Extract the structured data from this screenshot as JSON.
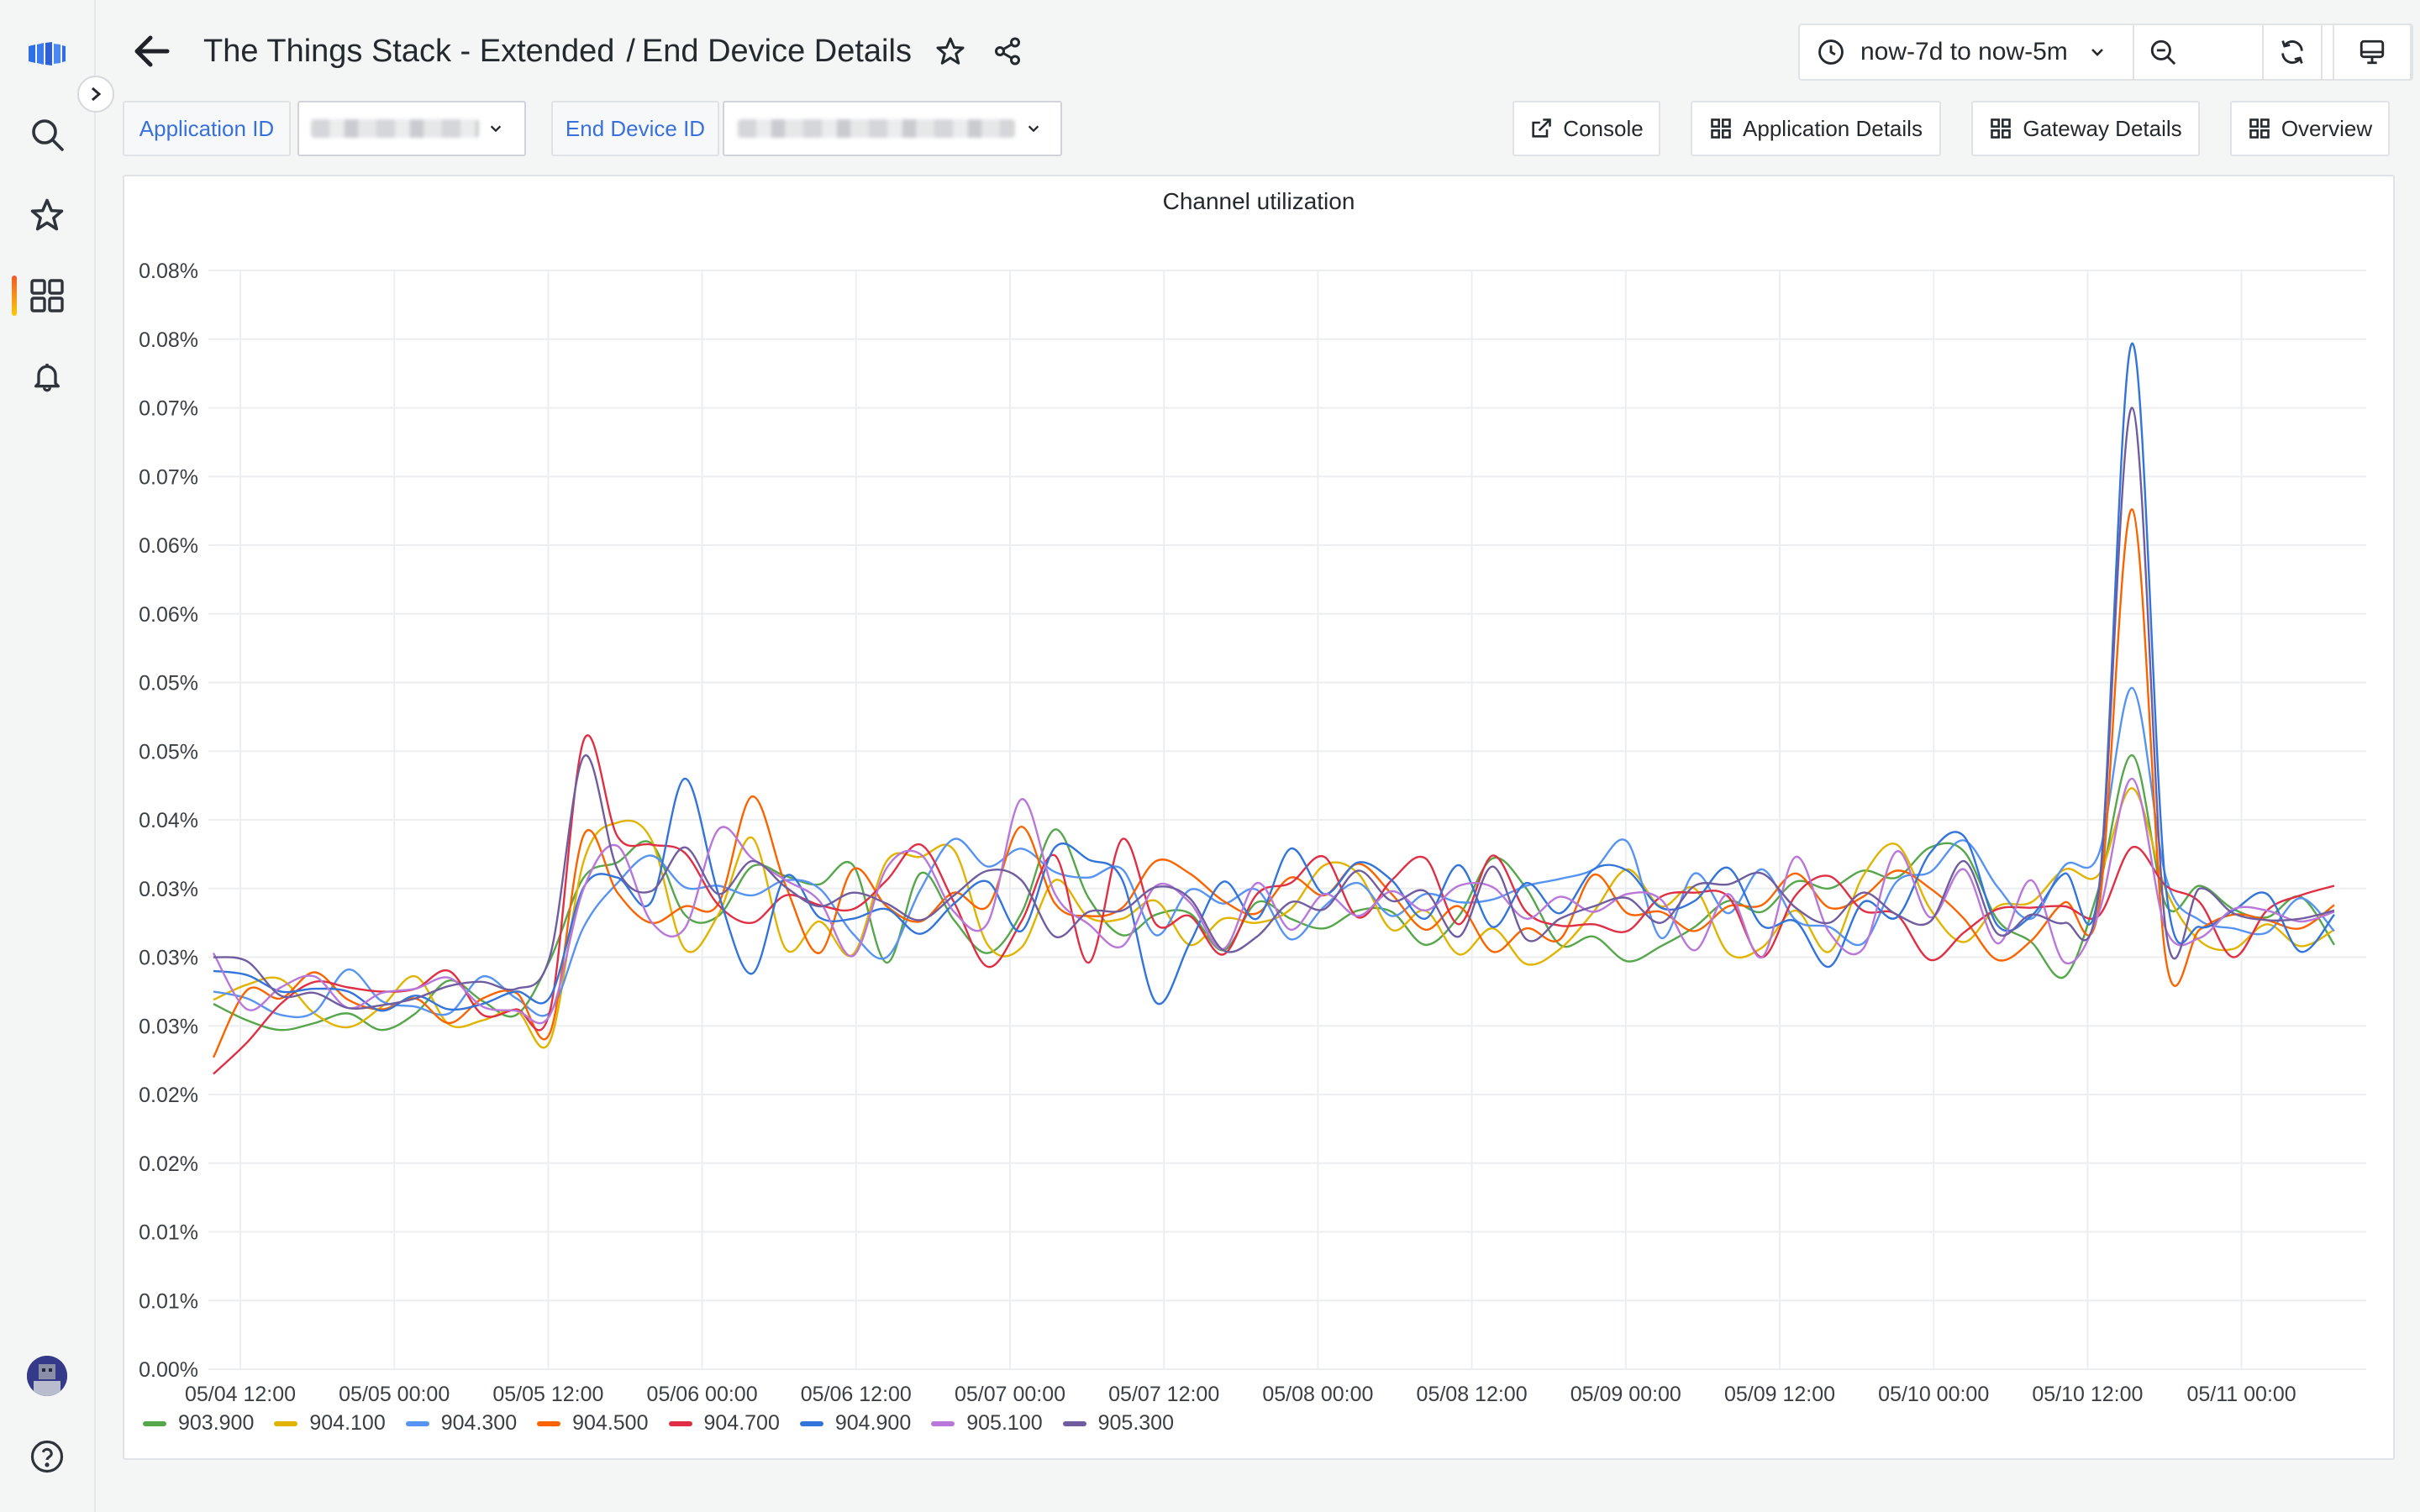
{
  "header": {
    "crumb_parent": "The Things Stack - Extended",
    "crumb_sep": "/",
    "crumb_current": "End Device Details",
    "time_range": "now-7d to now-5m"
  },
  "variables": {
    "application_label": "Application ID",
    "end_device_label": "End Device ID"
  },
  "links": {
    "console": "Console",
    "application_details": "Application Details",
    "gateway_details": "Gateway Details",
    "overview": "Overview"
  },
  "panel": {
    "title": "Channel utilization"
  },
  "icons": [
    "grafana-logo-icon",
    "search-icon",
    "star-icon",
    "dashboards-icon",
    "bell-icon",
    "help-icon",
    "back-arrow-icon",
    "share-icon",
    "clock-icon",
    "zoom-out-icon",
    "refresh-icon",
    "tv-icon",
    "external-link-icon",
    "dashboard-grid-icon"
  ],
  "chart_data": {
    "type": "line",
    "title": "Channel utilization",
    "y_ticks": [
      "0.08%",
      "0.08%",
      "0.07%",
      "0.07%",
      "0.06%",
      "0.06%",
      "0.05%",
      "0.05%",
      "0.04%",
      "0.03%",
      "0.03%",
      "0.03%",
      "0.02%",
      "0.02%",
      "0.01%",
      "0.01%",
      "0.00%"
    ],
    "ylim": [
      0,
      0.08
    ],
    "x_ticks": [
      "05/04 12:00",
      "05/05 00:00",
      "05/05 12:00",
      "05/06 00:00",
      "05/06 12:00",
      "05/07 00:00",
      "05/07 12:00",
      "05/08 00:00",
      "05/08 12:00",
      "05/09 00:00",
      "05/09 12:00",
      "05/10 00:00",
      "05/10 12:00",
      "05/11 00:00"
    ],
    "x_start": "05/04 10:00",
    "x_end": "05/11 09:00",
    "grid": true,
    "legend": "bottom-left",
    "series": [
      {
        "name": "903.900",
        "color": "#56a64b",
        "values": [
          0.0266,
          0.0254,
          0.0247,
          0.0252,
          0.0259,
          0.0247,
          0.0259,
          0.0283,
          0.0268,
          0.0258,
          0.0298,
          0.0358,
          0.0369,
          0.0383,
          0.0331,
          0.033,
          0.0366,
          0.0359,
          0.0353,
          0.0367,
          0.0296,
          0.0361,
          0.0327,
          0.0303,
          0.0332,
          0.0393,
          0.0343,
          0.0316,
          0.0331,
          0.0332,
          0.0305,
          0.034,
          0.0328,
          0.0321,
          0.0334,
          0.0333,
          0.0309,
          0.033,
          0.0372,
          0.035,
          0.0309,
          0.0315,
          0.0297,
          0.0308,
          0.0322,
          0.0341,
          0.0333,
          0.0355,
          0.035,
          0.0363,
          0.0358,
          0.038,
          0.0377,
          0.0327,
          0.0311,
          0.0286,
          0.035,
          0.0447,
          0.0338,
          0.0352,
          0.0335,
          0.0329,
          0.0344,
          0.0309
        ]
      },
      {
        "name": "904.100",
        "color": "#e0b400",
        "values": [
          0.0269,
          0.028,
          0.0284,
          0.0259,
          0.0249,
          0.0264,
          0.0286,
          0.0251,
          0.0254,
          0.0261,
          0.0239,
          0.037,
          0.0398,
          0.0386,
          0.0306,
          0.0331,
          0.0387,
          0.0306,
          0.0326,
          0.0302,
          0.037,
          0.0373,
          0.0378,
          0.0309,
          0.0307,
          0.0356,
          0.0329,
          0.0328,
          0.0341,
          0.0309,
          0.0328,
          0.0325,
          0.0335,
          0.0367,
          0.0361,
          0.032,
          0.0334,
          0.0302,
          0.0321,
          0.0295,
          0.0306,
          0.0333,
          0.0364,
          0.0337,
          0.035,
          0.0303,
          0.0307,
          0.0334,
          0.0304,
          0.0359,
          0.0382,
          0.0335,
          0.0311,
          0.0337,
          0.034,
          0.0364,
          0.036,
          0.0423,
          0.0349,
          0.0312,
          0.0306,
          0.0324,
          0.0308,
          0.032
        ]
      },
      {
        "name": "904.300",
        "color": "#5794f2",
        "values": [
          0.0275,
          0.027,
          0.0258,
          0.026,
          0.0291,
          0.0268,
          0.0264,
          0.0259,
          0.0286,
          0.027,
          0.026,
          0.0322,
          0.0354,
          0.0374,
          0.0351,
          0.0352,
          0.0345,
          0.0356,
          0.035,
          0.0317,
          0.03,
          0.0349,
          0.0386,
          0.0366,
          0.0379,
          0.0362,
          0.0358,
          0.0364,
          0.0316,
          0.0349,
          0.0339,
          0.0349,
          0.0313,
          0.0337,
          0.0354,
          0.033,
          0.0346,
          0.034,
          0.0342,
          0.0352,
          0.0357,
          0.0364,
          0.0384,
          0.0314,
          0.0361,
          0.0332,
          0.0364,
          0.0327,
          0.0322,
          0.031,
          0.0355,
          0.0362,
          0.0385,
          0.0351,
          0.0328,
          0.0367,
          0.0375,
          0.0496,
          0.0358,
          0.0327,
          0.0321,
          0.0318,
          0.0343,
          0.0319
        ]
      },
      {
        "name": "904.500",
        "color": "#fa6400",
        "values": [
          0.0227,
          0.0276,
          0.027,
          0.0289,
          0.0269,
          0.0262,
          0.027,
          0.0252,
          0.027,
          0.0274,
          0.0245,
          0.0389,
          0.0347,
          0.0325,
          0.0337,
          0.0339,
          0.0417,
          0.0352,
          0.0303,
          0.0364,
          0.0337,
          0.0326,
          0.0347,
          0.0337,
          0.0395,
          0.0339,
          0.033,
          0.0336,
          0.037,
          0.0361,
          0.0341,
          0.0332,
          0.0358,
          0.0345,
          0.0368,
          0.0346,
          0.032,
          0.0337,
          0.0304,
          0.0321,
          0.0313,
          0.036,
          0.0332,
          0.0333,
          0.0319,
          0.0337,
          0.0338,
          0.0361,
          0.0336,
          0.0344,
          0.0363,
          0.035,
          0.0328,
          0.0298,
          0.0312,
          0.034,
          0.0335,
          0.0626,
          0.0298,
          0.032,
          0.0331,
          0.0327,
          0.0321,
          0.0338
        ]
      },
      {
        "name": "904.700",
        "color": "#e02f44",
        "values": [
          0.0215,
          0.0238,
          0.0266,
          0.0282,
          0.0278,
          0.0275,
          0.0277,
          0.029,
          0.0258,
          0.0262,
          0.0261,
          0.0458,
          0.0388,
          0.0382,
          0.0376,
          0.0338,
          0.0325,
          0.0345,
          0.0338,
          0.0335,
          0.0356,
          0.0382,
          0.034,
          0.0293,
          0.0326,
          0.0374,
          0.0296,
          0.0386,
          0.0324,
          0.033,
          0.0302,
          0.0346,
          0.0354,
          0.0373,
          0.0329,
          0.0356,
          0.0372,
          0.0324,
          0.0374,
          0.0333,
          0.0323,
          0.0324,
          0.0319,
          0.0344,
          0.0347,
          0.0344,
          0.03,
          0.0345,
          0.0359,
          0.0334,
          0.0331,
          0.0298,
          0.0318,
          0.0335,
          0.0336,
          0.0337,
          0.033,
          0.038,
          0.0352,
          0.034,
          0.03,
          0.0334,
          0.0345,
          0.0352
        ]
      },
      {
        "name": "904.900",
        "color": "#3274d9",
        "values": [
          0.029,
          0.0287,
          0.0275,
          0.0277,
          0.0275,
          0.0261,
          0.0272,
          0.0262,
          0.0266,
          0.0275,
          0.0271,
          0.0351,
          0.0358,
          0.034,
          0.043,
          0.0346,
          0.0288,
          0.0359,
          0.0329,
          0.0328,
          0.0335,
          0.0317,
          0.0339,
          0.0355,
          0.0319,
          0.038,
          0.0371,
          0.0356,
          0.0267,
          0.031,
          0.0355,
          0.0328,
          0.0379,
          0.0346,
          0.0369,
          0.0356,
          0.0328,
          0.0367,
          0.0322,
          0.0354,
          0.0332,
          0.0364,
          0.0363,
          0.0336,
          0.0341,
          0.0365,
          0.0323,
          0.0326,
          0.0293,
          0.034,
          0.0329,
          0.0376,
          0.0388,
          0.0323,
          0.033,
          0.0361,
          0.0349,
          0.0747,
          0.035,
          0.0322,
          0.0334,
          0.0346,
          0.0304,
          0.0331
        ]
      },
      {
        "name": "905.100",
        "color": "#b877d9",
        "values": [
          0.0303,
          0.0262,
          0.0278,
          0.0286,
          0.0263,
          0.0274,
          0.0277,
          0.0285,
          0.0264,
          0.0261,
          0.0258,
          0.035,
          0.0381,
          0.0326,
          0.0321,
          0.0393,
          0.0372,
          0.0356,
          0.0341,
          0.0301,
          0.0365,
          0.0375,
          0.0333,
          0.0325,
          0.0415,
          0.0346,
          0.0324,
          0.0308,
          0.0352,
          0.034,
          0.0306,
          0.0354,
          0.032,
          0.0346,
          0.033,
          0.0348,
          0.0334,
          0.0352,
          0.0351,
          0.0328,
          0.0344,
          0.0333,
          0.0346,
          0.0342,
          0.0305,
          0.0346,
          0.03,
          0.0373,
          0.0318,
          0.0306,
          0.0377,
          0.0329,
          0.0364,
          0.031,
          0.0356,
          0.0296,
          0.0332,
          0.043,
          0.032,
          0.0314,
          0.0335,
          0.0334,
          0.0326,
          0.0333
        ]
      },
      {
        "name": "905.300",
        "color": "#705da0",
        "values": [
          0.03,
          0.0297,
          0.0272,
          0.0274,
          0.0263,
          0.0265,
          0.027,
          0.0279,
          0.0282,
          0.0277,
          0.0301,
          0.0446,
          0.0364,
          0.0348,
          0.038,
          0.0346,
          0.037,
          0.0351,
          0.0337,
          0.0347,
          0.0339,
          0.0327,
          0.0345,
          0.0363,
          0.0356,
          0.0315,
          0.0333,
          0.0334,
          0.0351,
          0.0343,
          0.0305,
          0.0315,
          0.034,
          0.0335,
          0.0363,
          0.0341,
          0.0348,
          0.0315,
          0.0366,
          0.0313,
          0.0328,
          0.0337,
          0.0343,
          0.0325,
          0.0352,
          0.0353,
          0.0361,
          0.0336,
          0.0325,
          0.0347,
          0.0331,
          0.0326,
          0.037,
          0.0317,
          0.0331,
          0.0325,
          0.0346,
          0.07,
          0.0319,
          0.035,
          0.0332,
          0.0327,
          0.0328,
          0.0334
        ]
      }
    ]
  }
}
